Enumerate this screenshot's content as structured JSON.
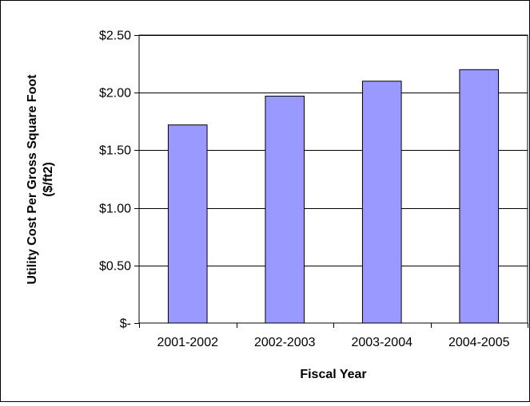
{
  "chart_data": {
    "type": "bar",
    "categories": [
      "2001-2002",
      "2002-2003",
      "2003-2004",
      "2004-2005"
    ],
    "values": [
      1.72,
      1.97,
      2.1,
      2.2
    ],
    "ylim": [
      0,
      2.5
    ],
    "yticks": [
      0,
      0.5,
      1.0,
      1.5,
      2.0,
      2.5
    ],
    "ytick_labels": [
      "$-",
      "$0.50",
      "$1.00",
      "$1.50",
      "$2.00",
      "$2.50"
    ],
    "xlabel": "Fiscal Year",
    "ylabel_line1": "Utility Cost Per Gross Square Foot",
    "ylabel_line2": "($/ft2)",
    "grid": true,
    "legend": "none",
    "colors": {
      "bar": "#9999ff",
      "bar_edge": "#000000",
      "plot_bg": "#ffffff",
      "grid": "#000000"
    }
  }
}
